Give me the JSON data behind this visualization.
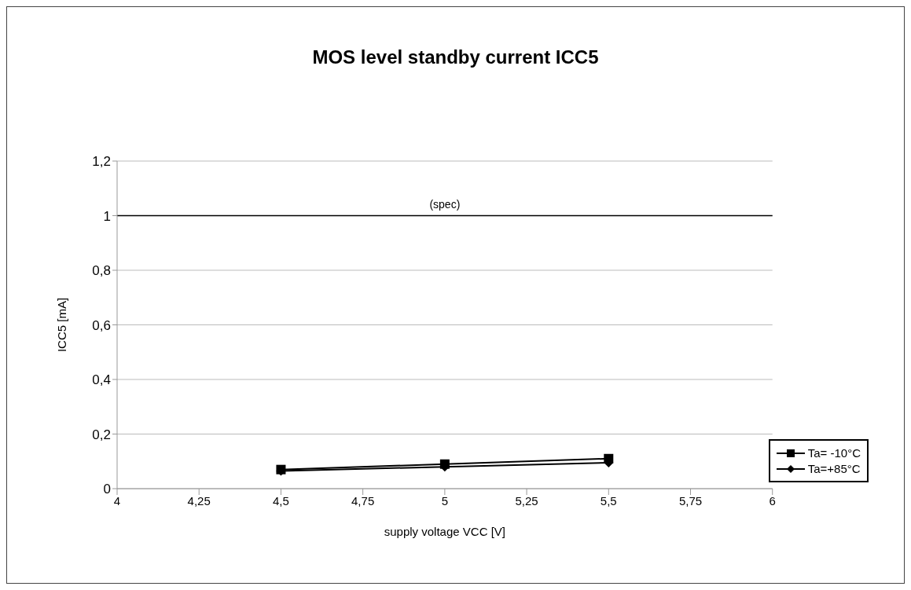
{
  "chart_data": {
    "type": "line",
    "title": "MOS level standby current ICC5",
    "xlabel": "supply voltage VCC [V]",
    "ylabel": "ICC5 [mA]",
    "x": [
      4.5,
      5,
      5.5
    ],
    "series": [
      {
        "name": "Ta= -10°C",
        "color": "#000000",
        "marker": "square",
        "values": [
          0.07,
          0.09,
          0.11
        ]
      },
      {
        "name": "Ta=+85°C",
        "color": "#000000",
        "marker": "diamond",
        "values": [
          0.065,
          0.08,
          0.095
        ]
      }
    ],
    "xlim": [
      4,
      6
    ],
    "xticks": [
      4,
      {
        "value": 4.25,
        "label": "4,25"
      },
      {
        "value": 4.5,
        "label": "4,5"
      },
      {
        "value": 4.75,
        "label": "4,75"
      },
      5,
      {
        "value": 5.25,
        "label": "5,25"
      },
      {
        "value": 5.5,
        "label": "5,5"
      },
      {
        "value": 5.75,
        "label": "5,75"
      },
      6
    ],
    "ylim": [
      0,
      1.2
    ],
    "yticks": [
      0,
      {
        "value": 0.2,
        "label": "0,2"
      },
      {
        "value": 0.4,
        "label": "0,4"
      },
      {
        "value": 0.6,
        "label": "0,6"
      },
      {
        "value": 0.8,
        "label": "0,8"
      },
      1,
      {
        "value": 1.2,
        "label": "1,2"
      }
    ],
    "ref_lines": [
      {
        "axis": "y",
        "value": 1,
        "label": "(spec)",
        "color": "#000000"
      }
    ],
    "grid": "y",
    "legend": "bottom right",
    "line_style": "solid"
  }
}
